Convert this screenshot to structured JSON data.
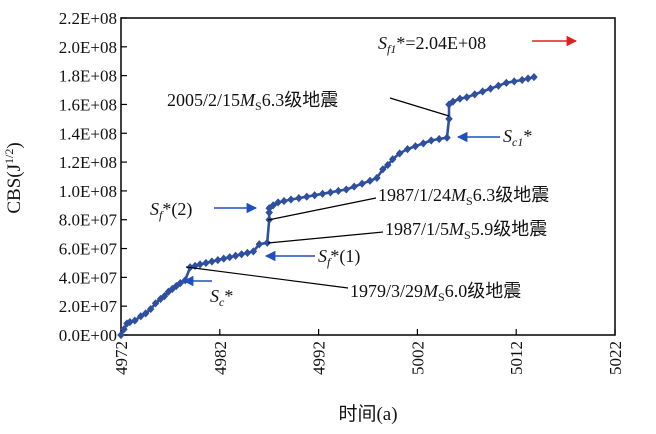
{
  "chart_data": {
    "type": "line",
    "ylabel": "CBS(J",
    "ylabel_sup": "1/2",
    "ylabel_close": ")",
    "xlabel": "时间(a)",
    "xlim": [
      4972,
      5022
    ],
    "ylim": [
      0,
      220000000
    ],
    "xticks": [
      4972,
      4982,
      4992,
      5002,
      5012,
      5022
    ],
    "yticks": [
      0,
      20000000,
      40000000,
      60000000,
      80000000,
      100000000,
      120000000,
      140000000,
      160000000,
      180000000,
      200000000,
      220000000
    ],
    "ytick_labels": [
      "0.0E+00",
      "2.0E+07",
      "4.0E+07",
      "6.0E+07",
      "8.0E+07",
      "1.0E+08",
      "1.2E+08",
      "1.4E+08",
      "1.6E+08",
      "1.8E+08",
      "2.0E+08",
      "2.2E+08"
    ],
    "series_color": "#2f4f9f",
    "arrow_color_blue": "#1f4fc0",
    "arrow_color_red": "#e02020",
    "series": [
      {
        "name": "CBS",
        "x": [
          4972.0,
          4972.3,
          4972.6,
          4972.9,
          4973.4,
          4974.0,
          4974.5,
          4975.0,
          4975.5,
          4976.0,
          4976.4,
          4976.8,
          4977.2,
          4977.6,
          4978.0,
          4978.5,
          4979.0,
          4979.5,
          4980.0,
          4980.6,
          4981.2,
          4981.8,
          4982.4,
          4983.0,
          4983.6,
          4984.2,
          4984.8,
          4985.4,
          4986.0,
          4986.8,
          4987.0,
          4987.0,
          4987.0,
          4987.4,
          4987.9,
          4988.5,
          4989.2,
          4990.0,
          4990.8,
          4991.6,
          4992.4,
          4993.2,
          4994.0,
          4994.8,
          4995.6,
          4996.4,
          4997.2,
          4997.9,
          4998.5,
          4999.0,
          4999.5,
          5000.2,
          5001.0,
          5001.8,
          5002.6,
          5003.4,
          5004.2,
          5005.0,
          5005.2,
          5005.2,
          5005.6,
          5006.3,
          5007.0,
          5007.8,
          5008.6,
          5009.4,
          5010.2,
          5011.0,
          5011.8,
          5012.6,
          5013.2,
          5013.8
        ],
        "y": [
          0,
          4000000,
          8000000,
          9000000,
          10000000,
          13000000,
          15000000,
          18000000,
          22000000,
          25000000,
          27000000,
          30000000,
          32000000,
          34000000,
          36000000,
          38000000,
          47000000,
          48000000,
          49000000,
          50000000,
          51000000,
          52000000,
          53000000,
          54000000,
          55000000,
          56000000,
          57000000,
          58000000,
          63000000,
          64000000,
          80000000,
          85000000,
          88000000,
          90000000,
          92000000,
          93000000,
          94000000,
          95000000,
          96000000,
          97000000,
          98000000,
          99000000,
          100000000,
          101000000,
          103000000,
          105000000,
          107000000,
          109000000,
          115000000,
          118000000,
          122000000,
          126000000,
          129000000,
          131000000,
          133000000,
          135000000,
          136000000,
          137000000,
          150000000,
          160000000,
          162000000,
          164000000,
          165000000,
          167000000,
          169000000,
          171000000,
          173000000,
          175000000,
          176000000,
          177000000,
          178000000,
          179000000
        ]
      }
    ],
    "annotations": {
      "sf1_label": "S",
      "sf1_sub": "f1",
      "sf1_rest": "*=2.04E+08",
      "eq2005_label": "2005/2/15",
      "eq2005_m": "M",
      "eq2005_ms": "S",
      "eq2005_rest": "6.3级地震",
      "sc1_label": "S",
      "sc1_sub": "c1",
      "sc1_rest": "*",
      "sf2_label": "S",
      "sf2_sub": "f",
      "sf2_rest": "*(2)",
      "eq1987a_label": "1987/1/24",
      "eq1987a_m": "M",
      "eq1987a_ms": "S",
      "eq1987a_rest": "6.3级地震",
      "eq1987b_label": "1987/1/5",
      "eq1987b_m": "M",
      "eq1987b_ms": "S",
      "eq1987b_rest": "5.9级地震",
      "sf1b_label": "S",
      "sf1b_sub": "f",
      "sf1b_rest": "*(1)",
      "eq1979_label": "1979/3/29",
      "eq1979_m": "M",
      "eq1979_ms": "S",
      "eq1979_rest": "6.0级地震",
      "sc_label": "S",
      "sc_sub": "c",
      "sc_rest": "*"
    }
  }
}
